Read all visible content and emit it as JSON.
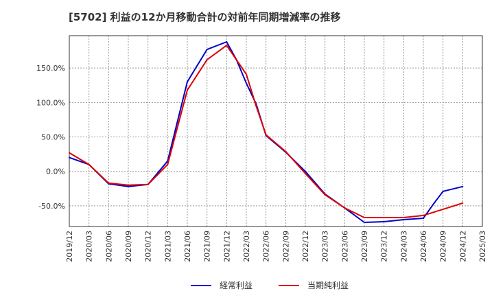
{
  "chart_data": {
    "type": "line",
    "title": "[5702]  利益の12か月移動合計の対前年同期増減率の推移",
    "xlabel": "",
    "ylabel": "",
    "x_ticks": [
      "2019/12",
      "2020/03",
      "2020/06",
      "2020/09",
      "2020/12",
      "2021/03",
      "2021/06",
      "2021/09",
      "2021/12",
      "2022/03",
      "2022/06",
      "2022/09",
      "2022/12",
      "2023/03",
      "2023/06",
      "2023/09",
      "2023/12",
      "2024/03",
      "2024/06",
      "2024/09",
      "2024/12",
      "2025/03"
    ],
    "y_ticks": [
      {
        "value": 150,
        "label": "150.0%"
      },
      {
        "value": 100,
        "label": "100.0%"
      },
      {
        "value": 50,
        "label": "50.0%"
      },
      {
        "value": 0,
        "label": "0.0%"
      },
      {
        "value": -50,
        "label": "-50.0%"
      }
    ],
    "ylim": [
      -80,
      197
    ],
    "grid": true,
    "legend_position": "bottom",
    "series": [
      {
        "name": "経常利益",
        "color": "#0000cc",
        "x": [
          0,
          1,
          2,
          3,
          4,
          5,
          6,
          7,
          8,
          8.5,
          9,
          9.5,
          10,
          11,
          12,
          13,
          14,
          15,
          16,
          17,
          18,
          18.5,
          19,
          20
        ],
        "values": [
          20,
          10,
          -18,
          -22,
          -19,
          15,
          130,
          177,
          188,
          162,
          128,
          98,
          52,
          28,
          0,
          -33,
          -53,
          -74,
          -73,
          -70,
          -68,
          -48,
          -29,
          -22
        ]
      },
      {
        "name": "当期純利益",
        "color": "#dd0000",
        "x": [
          0,
          1,
          2,
          3,
          4,
          5,
          6,
          7,
          8,
          9,
          9.5,
          10,
          11,
          12,
          13,
          14,
          15,
          16,
          17,
          18,
          19,
          20
        ],
        "values": [
          27,
          10,
          -17,
          -20,
          -19,
          10,
          118,
          162,
          183,
          141,
          95,
          53,
          29,
          -3,
          -34,
          -53,
          -67,
          -67,
          -67,
          -64,
          -55,
          -46
        ]
      }
    ]
  }
}
